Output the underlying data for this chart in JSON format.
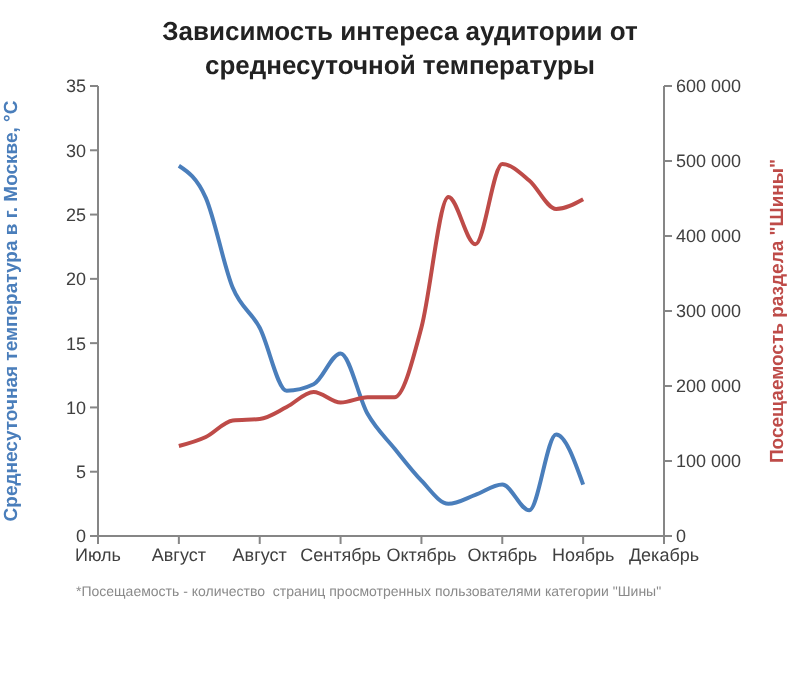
{
  "chart_data": {
    "type": "line",
    "title": "Зависимость интереса аудитории от среднесуточной температуры",
    "ylabel": "Среднесуточная температура в г. Москве, °С",
    "y2label": "Посещаемость раздела \"Шины\"",
    "categories": [
      "Июль",
      null,
      null,
      "Август",
      null,
      null,
      "Август",
      null,
      null,
      "Сентябрь",
      null,
      null,
      "Октябрь",
      null,
      null,
      "Октябрь",
      null,
      null,
      "Ноябрь",
      null,
      null,
      "Декабрь"
    ],
    "ylim": [
      0,
      35
    ],
    "yticks": [
      0,
      5,
      10,
      15,
      20,
      25,
      30,
      35
    ],
    "y2lim": [
      0,
      600000
    ],
    "y2ticks": [
      {
        "value": 0,
        "label": "0"
      },
      {
        "value": 100000,
        "label": "100 000"
      },
      {
        "value": 200000,
        "label": "200 000"
      },
      {
        "value": 300000,
        "label": "300 000"
      },
      {
        "value": 400000,
        "label": "400 000"
      },
      {
        "value": 500000,
        "label": "500 000"
      },
      {
        "value": 600000,
        "label": "600 000"
      }
    ],
    "series": [
      {
        "color": "#4a7ebb",
        "values": [
          null,
          null,
          null,
          28.8,
          26.3,
          19.3,
          16.2,
          11.3,
          11.8,
          14.2,
          9.5,
          6.8,
          4.3,
          2.5,
          3.2,
          4.0,
          2.0,
          7.9,
          4.0,
          null,
          null,
          null
        ]
      },
      {
        "color": "#be4b48",
        "axis": "y2",
        "values": [
          null,
          null,
          null,
          120000,
          132000,
          154000,
          156000,
          172000,
          192000,
          178000,
          185000,
          185000,
          278000,
          452000,
          389000,
          496000,
          474000,
          436000,
          449000,
          null,
          null,
          null
        ]
      }
    ],
    "grid": false,
    "legend": false,
    "marker": "none",
    "line_style": "solid",
    "annotations": [
      "*Посещаемость - количество  страниц просмотренных пользователями категории \"Шины\""
    ]
  }
}
